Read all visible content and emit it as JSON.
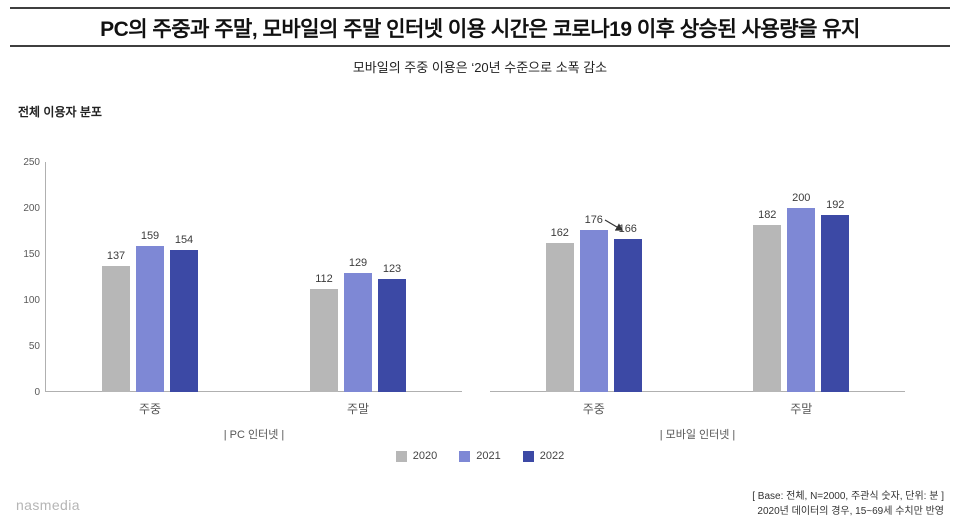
{
  "header": {
    "title": "PC의 주중과 주말, 모바일의 주말 인터넷 이용 시간은 코로나19 이후 상승된 사용량을 유지",
    "subtitle": "모바일의 주중 이용은 ‘20년 수준으로 소폭 감소"
  },
  "chart_data": {
    "type": "bar",
    "title": "전체 이용자 분포",
    "ylim": [
      0,
      250
    ],
    "yticks": [
      0,
      50,
      100,
      150,
      200,
      250
    ],
    "grid": false,
    "legend_position": "bottom-center",
    "plots": [
      {
        "label": "| PC 인터넷 |",
        "categories": [
          "주중",
          "주말"
        ],
        "series": [
          {
            "name": "2020",
            "values": [
              137,
              112
            ]
          },
          {
            "name": "2021",
            "values": [
              159,
              129
            ]
          },
          {
            "name": "2022",
            "values": [
              154,
              123
            ]
          }
        ]
      },
      {
        "label": "| 모바일 인터넷 |",
        "categories": [
          "주중",
          "주말"
        ],
        "series": [
          {
            "name": "2020",
            "values": [
              162,
              182
            ]
          },
          {
            "name": "2021",
            "values": [
              176,
              200
            ]
          },
          {
            "name": "2022",
            "values": [
              166,
              192
            ]
          }
        ]
      }
    ],
    "legend": [
      {
        "label": "2020",
        "color": "#b7b7b7"
      },
      {
        "label": "2021",
        "color": "#7e88d5"
      },
      {
        "label": "2022",
        "color": "#3c49a5"
      }
    ],
    "annotation": {
      "type": "arrow",
      "plot": 1,
      "category": 0,
      "from_series": 1,
      "to_series": 2
    }
  },
  "footer": {
    "logo": "nasmedia",
    "note_line1": "[ Base: 전체, N=2000, 주관식 숫자, 단위: 분 ]",
    "note_line2": "2020년 데이터의 경우, 15~69세 수치만 반영"
  }
}
